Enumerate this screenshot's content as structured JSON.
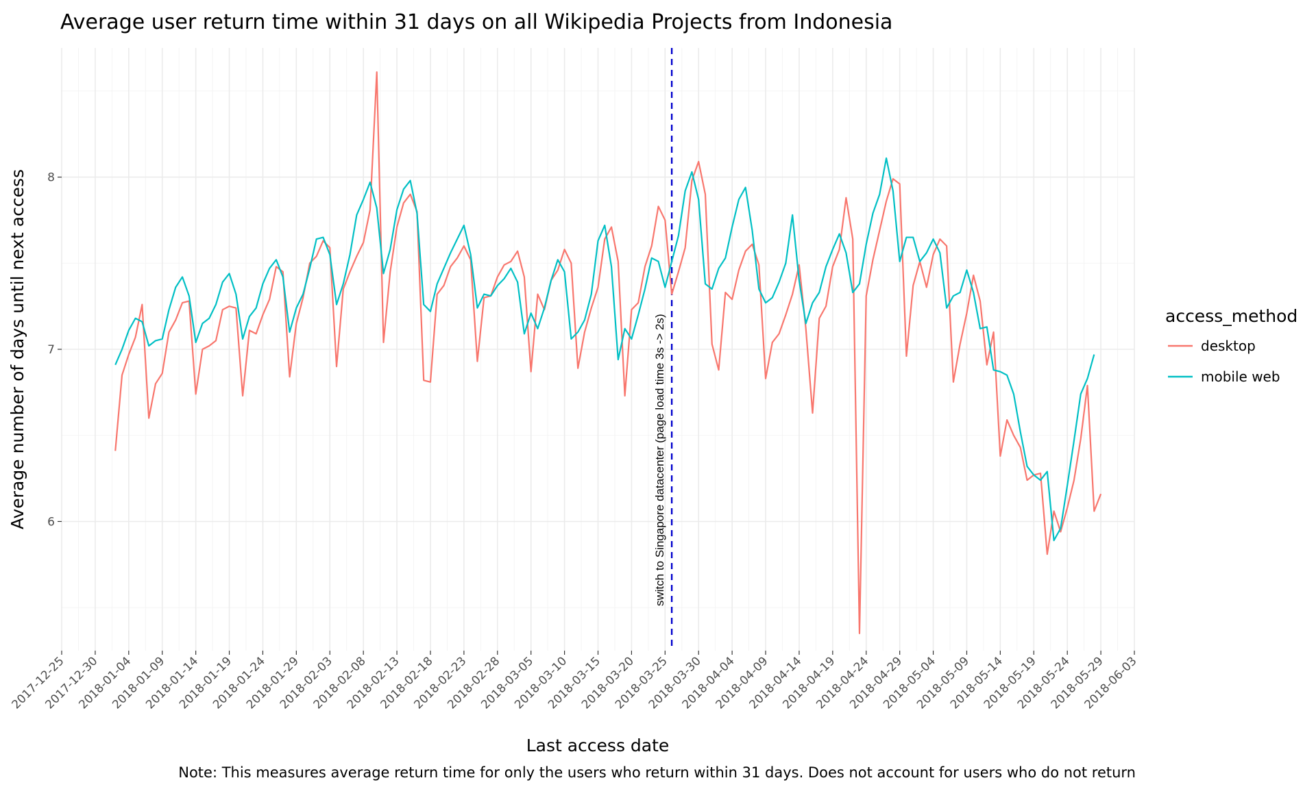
{
  "chart_data": {
    "type": "line",
    "title": "Average user return time within 31 days on all Wikipedia Projects from Indonesia",
    "xlabel": "Last access date",
    "ylabel": "Average number of days until next access",
    "caption": "Note: This measures average return time for only the users who return within 31 days. Does not account for users who do not return",
    "xlim": [
      "2017-12-25",
      "2018-06-03"
    ],
    "ylim": [
      5.25,
      8.75
    ],
    "x_ticks": [
      "2017-12-25",
      "2017-12-30",
      "2018-01-04",
      "2018-01-09",
      "2018-01-14",
      "2018-01-19",
      "2018-01-24",
      "2018-01-29",
      "2018-02-03",
      "2018-02-08",
      "2018-02-13",
      "2018-02-18",
      "2018-02-23",
      "2018-02-28",
      "2018-03-05",
      "2018-03-10",
      "2018-03-15",
      "2018-03-20",
      "2018-03-25",
      "2018-03-30",
      "2018-04-04",
      "2018-04-09",
      "2018-04-14",
      "2018-04-19",
      "2018-04-24",
      "2018-04-29",
      "2018-05-04",
      "2018-05-09",
      "2018-05-14",
      "2018-05-19",
      "2018-05-24",
      "2018-05-29",
      "2018-06-03"
    ],
    "y_ticks": [
      6,
      7,
      8
    ],
    "y_tick_labels": [
      "6",
      "7",
      "8"
    ],
    "grid": true,
    "legend": {
      "title": "access_method",
      "position": "right"
    },
    "start_date": "2018-01-02",
    "series": [
      {
        "name": "desktop",
        "color": "#F8766D",
        "values": [
          6.41,
          6.85,
          6.97,
          7.07,
          7.26,
          6.6,
          6.8,
          6.86,
          7.1,
          7.17,
          7.27,
          7.28,
          6.74,
          7.0,
          7.02,
          7.05,
          7.23,
          7.25,
          7.24,
          6.73,
          7.11,
          7.09,
          7.2,
          7.29,
          7.48,
          7.45,
          6.84,
          7.15,
          7.3,
          7.5,
          7.54,
          7.63,
          7.59,
          6.9,
          7.35,
          7.45,
          7.54,
          7.62,
          7.81,
          8.61,
          7.04,
          7.45,
          7.71,
          7.85,
          7.9,
          7.8,
          6.82,
          6.81,
          7.32,
          7.37,
          7.48,
          7.53,
          7.6,
          7.52,
          6.93,
          7.3,
          7.31,
          7.42,
          7.49,
          7.51,
          7.57,
          7.42,
          6.87,
          7.32,
          7.23,
          7.4,
          7.46,
          7.58,
          7.5,
          6.89,
          7.1,
          7.24,
          7.36,
          7.64,
          7.71,
          7.51,
          6.73,
          7.23,
          7.27,
          7.48,
          7.6,
          7.83,
          7.75,
          7.32,
          7.45,
          7.59,
          7.98,
          8.09,
          7.9,
          7.03,
          6.88,
          7.33,
          7.29,
          7.46,
          7.57,
          7.61,
          7.49,
          6.83,
          7.04,
          7.09,
          7.2,
          7.32,
          7.49,
          7.12,
          6.63,
          7.18,
          7.25,
          7.48,
          7.58,
          7.88,
          7.64,
          5.35,
          7.31,
          7.52,
          7.69,
          7.86,
          7.99,
          7.96,
          6.96,
          7.37,
          7.51,
          7.36,
          7.55,
          7.64,
          7.6,
          6.81,
          7.03,
          7.21,
          7.43,
          7.28,
          6.91,
          7.1,
          6.38,
          6.59,
          6.5,
          6.43,
          6.24,
          6.27,
          6.28,
          5.81,
          6.06,
          5.94,
          6.08,
          6.24,
          6.48,
          6.79,
          6.06,
          6.16
        ]
      },
      {
        "name": "mobile web",
        "color": "#00BFC4",
        "values": [
          6.91,
          7.0,
          7.11,
          7.18,
          7.16,
          7.02,
          7.05,
          7.06,
          7.23,
          7.36,
          7.42,
          7.31,
          7.04,
          7.15,
          7.18,
          7.26,
          7.39,
          7.44,
          7.32,
          7.06,
          7.19,
          7.24,
          7.38,
          7.47,
          7.52,
          7.42,
          7.1,
          7.24,
          7.32,
          7.47,
          7.64,
          7.65,
          7.55,
          7.26,
          7.38,
          7.55,
          7.78,
          7.87,
          7.97,
          7.82,
          7.44,
          7.58,
          7.81,
          7.93,
          7.98,
          7.79,
          7.26,
          7.22,
          7.38,
          7.47,
          7.56,
          7.64,
          7.72,
          7.55,
          7.24,
          7.32,
          7.31,
          7.37,
          7.41,
          7.47,
          7.39,
          7.09,
          7.21,
          7.12,
          7.24,
          7.4,
          7.52,
          7.45,
          7.06,
          7.1,
          7.17,
          7.32,
          7.63,
          7.72,
          7.48,
          6.94,
          7.12,
          7.06,
          7.2,
          7.35,
          7.53,
          7.51,
          7.36,
          7.51,
          7.66,
          7.92,
          8.03,
          7.87,
          7.38,
          7.35,
          7.47,
          7.53,
          7.71,
          7.87,
          7.94,
          7.69,
          7.35,
          7.27,
          7.3,
          7.39,
          7.5,
          7.78,
          7.4,
          7.15,
          7.27,
          7.33,
          7.48,
          7.58,
          7.67,
          7.56,
          7.33,
          7.38,
          7.61,
          7.79,
          7.9,
          8.11,
          7.92,
          7.51,
          7.65,
          7.65,
          7.51,
          7.56,
          7.64,
          7.56,
          7.24,
          7.31,
          7.33,
          7.46,
          7.33,
          7.12,
          7.13,
          6.88,
          6.87,
          6.85,
          6.74,
          6.52,
          6.32,
          6.27,
          6.24,
          6.29,
          5.89,
          5.96,
          6.21,
          6.47,
          6.74,
          6.83,
          6.97
        ]
      }
    ],
    "annotations": [
      {
        "type": "vline",
        "x": "2018-03-26",
        "color": "#0000CC",
        "linestyle": "dashed",
        "label": "switch to Singapore datacenter (page load time 3s -> 2s)"
      }
    ]
  }
}
